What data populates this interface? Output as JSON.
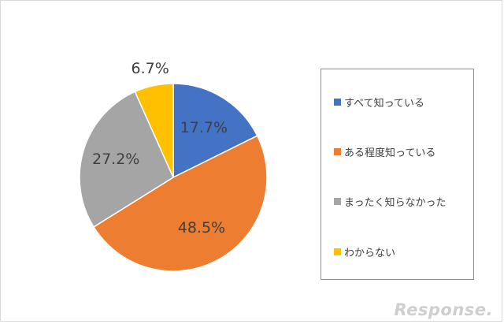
{
  "chart_data": {
    "type": "pie",
    "title": "",
    "slices": [
      {
        "label": "すべて知っている",
        "value": 17.7,
        "display": "17.7%",
        "color": "#4472C4"
      },
      {
        "label": "ある程度知っている",
        "value": 48.5,
        "display": "48.5%",
        "color": "#ED7D31"
      },
      {
        "label": "まったく知らなかった",
        "value": 27.2,
        "display": "27.2%",
        "color": "#A5A5A5"
      },
      {
        "label": "わからない",
        "value": 6.7,
        "display": "6.7%",
        "color": "#FFC000"
      }
    ],
    "legend_placement": "right"
  },
  "watermark": {
    "text": "Response."
  }
}
